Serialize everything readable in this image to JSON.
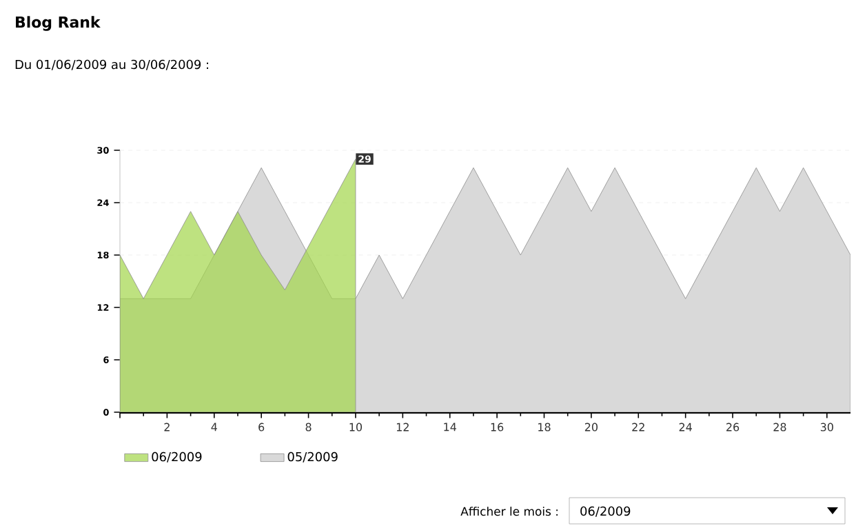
{
  "chart_data": {
    "type": "area",
    "title": "Blog Rank",
    "subtitle": "Du 01/06/2009 au 30/06/2009 :",
    "annotations": [
      "Afficher le mois :",
      "06/2009"
    ],
    "x": [
      0,
      1,
      2,
      3,
      4,
      5,
      6,
      7,
      8,
      9,
      10,
      11,
      12,
      13,
      14,
      15,
      16,
      17,
      18,
      19,
      20,
      21,
      22,
      23,
      24,
      25,
      26,
      27,
      28,
      29,
      30,
      31
    ],
    "series": [
      {
        "name": "06/2009",
        "color": "#a3d54a",
        "x": [
          0,
          1,
          2,
          3,
          4,
          5,
          6,
          7,
          8,
          9,
          10
        ],
        "values": [
          18,
          13,
          18,
          23,
          18,
          23,
          18,
          14,
          19,
          24,
          29
        ],
        "value_labels": [
          null,
          null,
          null,
          null,
          null,
          null,
          null,
          null,
          null,
          null,
          "29"
        ]
      },
      {
        "name": "05/2009",
        "color": "#d9d9d9",
        "values": [
          13,
          13,
          13,
          13,
          18,
          23,
          28,
          23,
          18,
          13,
          13,
          18,
          13,
          18,
          23,
          28,
          23,
          18,
          23,
          28,
          23,
          28,
          23,
          18,
          13,
          18,
          23,
          28,
          23,
          28,
          23,
          18
        ]
      }
    ],
    "xlim": [
      0,
      31
    ],
    "ylim": [
      0,
      30
    ],
    "xticks": [
      {
        "value": 0,
        "label": null
      },
      2,
      4,
      6,
      8,
      10,
      12,
      14,
      16,
      18,
      20,
      22,
      24,
      26,
      28,
      30
    ],
    "yticks": [
      0,
      6,
      12,
      18,
      24,
      30
    ],
    "grid": "y",
    "legend": "bottom left",
    "marker": "none"
  }
}
